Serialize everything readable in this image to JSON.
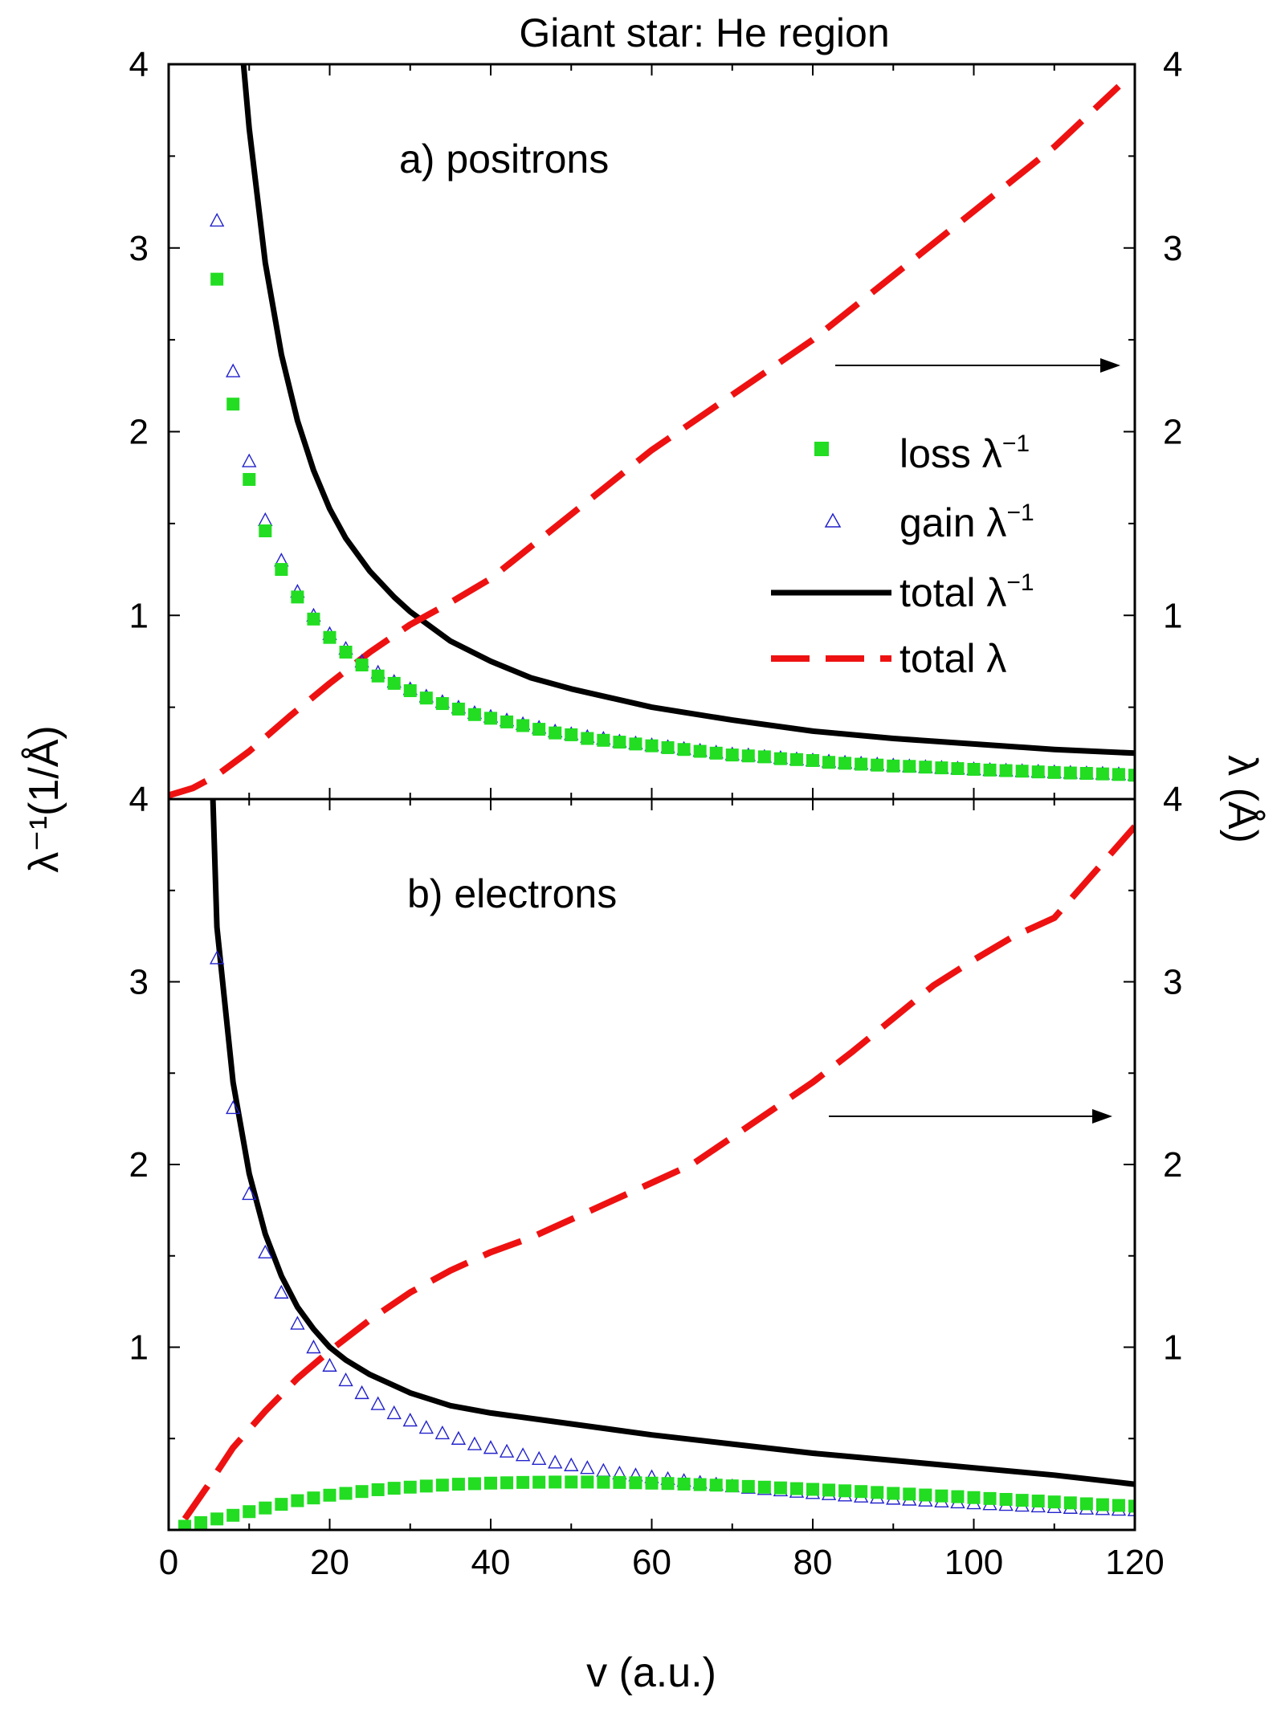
{
  "title": "Giant star: He region",
  "colors": {
    "loss": "#22dd22",
    "gain": "#2222cc",
    "total_inv": "#000000",
    "total_lambda": "#ee1111"
  },
  "chart_data": [
    {
      "type": "scatter",
      "panel": "a",
      "panel_label": "a) positrons",
      "xlim": [
        0,
        120
      ],
      "ylim_left": [
        0,
        4
      ],
      "ylim_right": [
        0,
        4
      ],
      "left_ticks": [
        "4",
        "3",
        "2",
        "1"
      ],
      "right_ticks": [
        "4",
        "3",
        "2",
        "1"
      ],
      "arrow": "points to right axis",
      "series": {
        "loss": {
          "name": "loss  λ⁻¹",
          "x": [
            6,
            8,
            10,
            12,
            14,
            16,
            18,
            20,
            22,
            24,
            26,
            28,
            30,
            32,
            34,
            36,
            38,
            40,
            42,
            44,
            46,
            48,
            50,
            52,
            54,
            56,
            58,
            60,
            62,
            64,
            66,
            68,
            70,
            72,
            74,
            76,
            78,
            80,
            82,
            84,
            86,
            88,
            90,
            92,
            94,
            96,
            98,
            100,
            102,
            104,
            106,
            108,
            110,
            112,
            114,
            116,
            118,
            120
          ],
          "y": [
            2.83,
            2.15,
            1.74,
            1.46,
            1.25,
            1.1,
            0.98,
            0.88,
            0.8,
            0.73,
            0.67,
            0.63,
            0.59,
            0.55,
            0.52,
            0.49,
            0.46,
            0.44,
            0.42,
            0.4,
            0.38,
            0.36,
            0.35,
            0.33,
            0.32,
            0.31,
            0.3,
            0.29,
            0.28,
            0.27,
            0.26,
            0.25,
            0.24,
            0.235,
            0.23,
            0.22,
            0.215,
            0.21,
            0.2,
            0.195,
            0.19,
            0.185,
            0.18,
            0.178,
            0.174,
            0.17,
            0.166,
            0.162,
            0.158,
            0.155,
            0.152,
            0.148,
            0.145,
            0.142,
            0.14,
            0.137,
            0.134,
            0.13
          ]
        },
        "gain": {
          "name": "gain λ⁻¹",
          "x": [
            6,
            8,
            10,
            12,
            14,
            16,
            18,
            20,
            22,
            24,
            26,
            28,
            30,
            32,
            34,
            36,
            38,
            40,
            42,
            44,
            46,
            48,
            50,
            52,
            54,
            56,
            58,
            60,
            62,
            64,
            66,
            68,
            70,
            72,
            74,
            76,
            78,
            80,
            82,
            84,
            86,
            88,
            90,
            92,
            94,
            96,
            98,
            100,
            102,
            104,
            106,
            108,
            110,
            112,
            114,
            116,
            118,
            120
          ],
          "y": [
            3.15,
            2.33,
            1.84,
            1.52,
            1.3,
            1.13,
            1.0,
            0.9,
            0.82,
            0.75,
            0.69,
            0.64,
            0.6,
            0.56,
            0.53,
            0.5,
            0.47,
            0.45,
            0.43,
            0.41,
            0.39,
            0.37,
            0.355,
            0.34,
            0.33,
            0.315,
            0.305,
            0.295,
            0.285,
            0.275,
            0.265,
            0.255,
            0.245,
            0.24,
            0.232,
            0.225,
            0.218,
            0.212,
            0.206,
            0.2,
            0.195,
            0.19,
            0.185,
            0.18,
            0.176,
            0.172,
            0.168,
            0.164,
            0.16,
            0.157,
            0.154,
            0.151,
            0.148,
            0.145,
            0.142,
            0.14,
            0.137,
            0.134
          ]
        },
        "total_inv": {
          "name": "total λ⁻¹",
          "x": [
            9.3,
            10,
            12,
            14,
            16,
            18,
            20,
            22,
            25,
            28,
            30,
            35,
            40,
            45,
            50,
            55,
            60,
            70,
            80,
            90,
            100,
            110,
            120
          ],
          "y": [
            4.0,
            3.65,
            2.92,
            2.42,
            2.06,
            1.79,
            1.58,
            1.42,
            1.24,
            1.1,
            1.02,
            0.86,
            0.75,
            0.66,
            0.6,
            0.55,
            0.5,
            0.43,
            0.37,
            0.33,
            0.3,
            0.27,
            0.25
          ]
        },
        "total_lambda": {
          "name": "total λ",
          "x": [
            0,
            3,
            6,
            10,
            15,
            20,
            25,
            30,
            35,
            40,
            50,
            60,
            70,
            80,
            90,
            100,
            110,
            118
          ],
          "y": [
            0.02,
            0.06,
            0.13,
            0.26,
            0.45,
            0.63,
            0.8,
            0.95,
            1.07,
            1.2,
            1.55,
            1.9,
            2.2,
            2.5,
            2.85,
            3.2,
            3.55,
            3.88
          ]
        }
      }
    },
    {
      "type": "scatter",
      "panel": "b",
      "panel_label": "b) electrons",
      "xlim": [
        0,
        120
      ],
      "ylim_left": [
        0,
        4
      ],
      "ylim_right": [
        0,
        4
      ],
      "left_ticks": [
        "4",
        "3",
        "2",
        "1"
      ],
      "right_ticks": [
        "4",
        "3",
        "2",
        "1"
      ],
      "arrow": "points to right axis",
      "series": {
        "loss": {
          "name": "loss  λ⁻¹",
          "x": [
            2,
            4,
            6,
            8,
            10,
            12,
            14,
            16,
            18,
            20,
            22,
            24,
            26,
            28,
            30,
            32,
            34,
            36,
            38,
            40,
            42,
            44,
            46,
            48,
            50,
            52,
            54,
            56,
            58,
            60,
            62,
            64,
            66,
            68,
            70,
            72,
            74,
            76,
            78,
            80,
            82,
            84,
            86,
            88,
            90,
            92,
            94,
            96,
            98,
            100,
            102,
            104,
            106,
            108,
            110,
            112,
            114,
            116,
            118,
            120
          ],
          "y": [
            0.02,
            0.04,
            0.06,
            0.08,
            0.1,
            0.12,
            0.14,
            0.16,
            0.175,
            0.19,
            0.2,
            0.21,
            0.22,
            0.228,
            0.234,
            0.24,
            0.245,
            0.25,
            0.253,
            0.256,
            0.258,
            0.26,
            0.261,
            0.262,
            0.262,
            0.262,
            0.261,
            0.26,
            0.258,
            0.256,
            0.254,
            0.251,
            0.248,
            0.245,
            0.241,
            0.238,
            0.234,
            0.23,
            0.226,
            0.222,
            0.218,
            0.214,
            0.21,
            0.205,
            0.2,
            0.196,
            0.191,
            0.186,
            0.182,
            0.177,
            0.172,
            0.167,
            0.162,
            0.158,
            0.153,
            0.148,
            0.143,
            0.138,
            0.134,
            0.13
          ]
        },
        "gain": {
          "name": "gain λ⁻¹",
          "x": [
            6,
            8,
            10,
            12,
            14,
            16,
            18,
            20,
            22,
            24,
            26,
            28,
            30,
            32,
            34,
            36,
            38,
            40,
            42,
            44,
            46,
            48,
            50,
            52,
            54,
            56,
            58,
            60,
            62,
            64,
            66,
            68,
            70,
            72,
            74,
            76,
            78,
            80,
            82,
            84,
            86,
            88,
            90,
            92,
            94,
            96,
            98,
            100,
            102,
            104,
            106,
            108,
            110,
            112,
            114,
            116,
            118,
            120
          ],
          "y": [
            3.13,
            2.31,
            1.84,
            1.52,
            1.3,
            1.13,
            1.0,
            0.9,
            0.82,
            0.75,
            0.69,
            0.64,
            0.6,
            0.56,
            0.53,
            0.5,
            0.47,
            0.45,
            0.43,
            0.41,
            0.39,
            0.37,
            0.355,
            0.34,
            0.325,
            0.31,
            0.3,
            0.29,
            0.28,
            0.27,
            0.26,
            0.25,
            0.24,
            0.232,
            0.225,
            0.218,
            0.21,
            0.203,
            0.197,
            0.19,
            0.184,
            0.178,
            0.172,
            0.167,
            0.162,
            0.157,
            0.152,
            0.147,
            0.142,
            0.138,
            0.134,
            0.13,
            0.126,
            0.122,
            0.118,
            0.115,
            0.112,
            0.109
          ]
        },
        "total_inv": {
          "name": "total λ⁻¹",
          "x": [
            5.5,
            6,
            8,
            10,
            12,
            14,
            16,
            18,
            20,
            22,
            25,
            30,
            35,
            40,
            50,
            60,
            70,
            80,
            90,
            100,
            110,
            120
          ],
          "y": [
            4.0,
            3.3,
            2.45,
            1.95,
            1.62,
            1.39,
            1.22,
            1.1,
            1.0,
            0.93,
            0.85,
            0.75,
            0.68,
            0.64,
            0.58,
            0.52,
            0.47,
            0.42,
            0.38,
            0.34,
            0.3,
            0.25
          ]
        },
        "total_lambda": {
          "name": "total λ",
          "x": [
            2,
            5,
            8,
            12,
            16,
            20,
            25,
            30,
            35,
            40,
            45,
            50,
            55,
            60,
            65,
            70,
            75,
            80,
            85,
            90,
            95,
            100,
            105,
            110,
            112,
            115,
            118,
            120
          ],
          "y": [
            0.06,
            0.25,
            0.45,
            0.65,
            0.83,
            0.98,
            1.15,
            1.3,
            1.42,
            1.52,
            1.6,
            1.7,
            1.8,
            1.9,
            2.0,
            2.15,
            2.3,
            2.45,
            2.62,
            2.8,
            2.98,
            3.12,
            3.25,
            3.35,
            3.45,
            3.6,
            3.75,
            3.85
          ]
        }
      }
    }
  ],
  "axes": {
    "x_ticks": [
      "0",
      "20",
      "40",
      "60",
      "80",
      "100",
      "120"
    ],
    "x_label": "v (a.u.)",
    "y_left_label": "λ⁻¹(1/Å)",
    "y_right_label": "λ (Å)"
  },
  "legend": [
    {
      "key": "loss",
      "label": "loss  λ",
      "sup": "−1",
      "marker": "filled-square"
    },
    {
      "key": "gain",
      "label": "gain λ",
      "sup": "−1",
      "marker": "open-triangle"
    },
    {
      "key": "total_inv",
      "label": "total λ",
      "sup": "−1",
      "marker": "solid-line"
    },
    {
      "key": "total_lambda",
      "label": "total λ",
      "sup": "",
      "marker": "dashed-line"
    }
  ]
}
